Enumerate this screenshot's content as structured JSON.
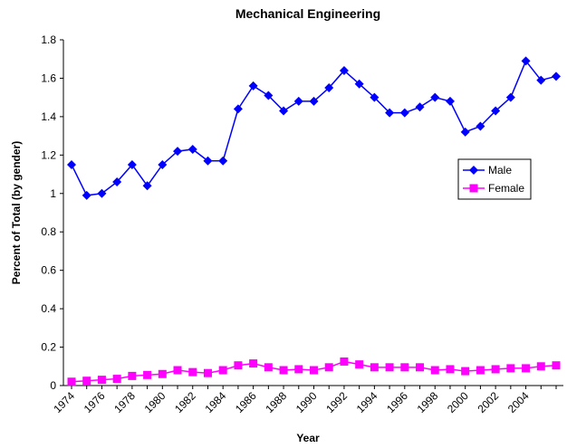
{
  "chart_data": {
    "type": "line",
    "title": "Mechanical Engineering",
    "x_label": "Year",
    "y_label": "Percent of Total (by gender)",
    "categories": [
      "1974",
      null,
      "1976",
      null,
      "1978",
      null,
      "1980",
      null,
      "1982",
      null,
      "1984",
      null,
      "1986",
      null,
      "1988",
      null,
      "1990",
      null,
      "1992",
      null,
      "1994",
      null,
      "1996",
      null,
      "1998",
      null,
      "2000",
      null,
      "2002",
      null,
      "2004",
      null,
      null
    ],
    "series": [
      {
        "name": "Male",
        "color": "#0000ff",
        "marker": "diamond",
        "values": [
          1.15,
          0.99,
          1.0,
          1.06,
          1.15,
          1.04,
          1.15,
          1.22,
          1.23,
          1.17,
          1.17,
          1.44,
          1.56,
          1.51,
          1.43,
          1.48,
          1.48,
          1.55,
          1.64,
          1.57,
          1.5,
          1.42,
          1.42,
          1.45,
          1.5,
          1.48,
          1.32,
          1.35,
          1.43,
          1.5,
          1.69,
          1.59,
          1.61
        ]
      },
      {
        "name": "Female",
        "color": "#ff00ff",
        "marker": "square",
        "values": [
          0.02,
          0.025,
          0.03,
          0.035,
          0.05,
          0.055,
          0.06,
          0.08,
          0.07,
          0.065,
          0.08,
          0.105,
          0.115,
          0.095,
          0.08,
          0.085,
          0.08,
          0.095,
          0.125,
          0.11,
          0.095,
          0.095,
          0.095,
          0.095,
          0.08,
          0.085,
          0.075,
          0.08,
          0.085,
          0.09,
          0.09,
          0.1,
          0.105
        ]
      }
    ],
    "ylim": [
      0,
      1.8
    ],
    "yticks": [
      0,
      0.2,
      0.4,
      0.6,
      0.8,
      1,
      1.2,
      1.4,
      1.6,
      1.8
    ],
    "grid": false,
    "legend": "right"
  }
}
